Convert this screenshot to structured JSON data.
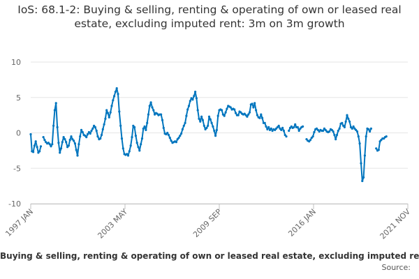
{
  "chart_data": {
    "type": "line",
    "title": "IoS: 68.1-2: Buying & selling, renting & operating of own or leased real estate, excluding imputed rent: 3m on 3m growth",
    "xlabel": "",
    "ylabel": "",
    "ylim": [
      -10,
      10
    ],
    "yticks": [
      10,
      5,
      0,
      -5,
      -10
    ],
    "x_start": "1997 JAN",
    "x_end": "2021 NOV",
    "x_ticks": [
      "1997 JAN",
      "2003 MAY",
      "2009 SEP",
      "2016 JAN",
      "2021 NOV"
    ],
    "series_color": "#0075be",
    "series": [
      {
        "name": "Buying & selling, renting & operating of own or leased real estate, excluding imputed rent",
        "segments": [
          [
            -0.2,
            -2.6,
            -2.7,
            -1.8,
            -1.2,
            -2.0,
            -2.8,
            -2.6,
            -1.9
          ],
          [
            -0.6,
            -1.0,
            -1.3,
            -1.5,
            -1.4,
            -1.6,
            -1.9,
            -1.6,
            1.0,
            3.2,
            4.2,
            0.8,
            -1.4,
            -2.8,
            -2.2,
            -1.3,
            -0.6,
            -0.9,
            -1.3,
            -2.0,
            -1.8,
            -1.0,
            -0.5,
            -0.9,
            -1.1,
            -1.5,
            -2.4,
            -3.2,
            -1.6,
            -0.5,
            0.4,
            0.1,
            -0.3,
            -0.4,
            -0.6,
            -0.2,
            0.1,
            -0.1,
            0.3,
            0.6,
            1.0,
            0.8,
            0.3,
            -0.5,
            -0.9,
            -0.8,
            -0.3,
            0.5,
            1.2,
            2.0,
            3.2,
            2.8,
            2.2,
            2.9,
            3.8,
            4.6,
            5.2,
            5.8,
            6.3,
            5.5,
            3.0,
            1.0,
            -0.8,
            -2.2,
            -3.0,
            -3.1,
            -3.0,
            -3.2,
            -2.6,
            -1.8,
            -0.6,
            1.0,
            0.8,
            -0.4,
            -1.4,
            -2.0,
            -2.5,
            -1.6,
            -0.8,
            0.6,
            0.9,
            0.4,
            1.4,
            2.6,
            3.8,
            4.3,
            3.6,
            3.2,
            2.6,
            2.8,
            2.7,
            2.5,
            2.6,
            2.6,
            1.8,
            0.7,
            -0.1,
            -0.2,
            0.0,
            -0.3,
            -0.7,
            -1.1,
            -1.4,
            -1.3,
            -1.2,
            -1.3,
            -0.9,
            -0.7,
            -0.4,
            -0.1,
            0.5,
            1.0,
            1.4,
            2.4,
            3.3,
            3.8,
            4.5,
            4.9,
            4.7,
            5.2,
            5.8,
            4.9,
            3.2,
            2.0,
            1.6,
            2.3,
            1.8,
            1.0,
            0.5,
            0.7,
            1.0,
            2.3,
            1.9,
            1.4,
            0.9,
            0.3,
            -0.4,
            0.4,
            2.4,
            3.2,
            3.3,
            3.2,
            2.6,
            2.4,
            2.9,
            3.4,
            3.8,
            3.7,
            3.6,
            3.3,
            3.4,
            3.3,
            2.8,
            2.5,
            2.5,
            3.0,
            2.9,
            2.7,
            2.6,
            2.7,
            2.5,
            2.3,
            2.6,
            2.9,
            4.0,
            4.1,
            3.6,
            4.2,
            3.2,
            2.5,
            2.2,
            2.1,
            2.6,
            2.1,
            1.4,
            1.4,
            0.9,
            0.5,
            0.8,
            0.4,
            0.6,
            0.3,
            0.5,
            0.4,
            0.6,
            0.8,
            1.0,
            0.6,
            0.4,
            0.7,
            0.3,
            -0.3,
            -0.5
          ],
          [
            0.3,
            0.7,
            0.9,
            0.7,
            0.8,
            1.2,
            0.8,
            0.8,
            0.3,
            0.6,
            0.8,
            0.9
          ],
          [
            -0.9,
            -1.1,
            -1.2,
            -1.0,
            -0.7,
            -0.5,
            0.1,
            0.5,
            0.6,
            0.4,
            0.2,
            0.4,
            0.3,
            0.3,
            0.6,
            0.4,
            0.2,
            0.1,
            0.2,
            0.5,
            0.4,
            0.2,
            -0.3,
            -0.9,
            -0.3,
            0.3,
            0.6,
            1.3,
            1.4,
            1.0,
            0.8,
            1.6,
            2.5,
            2.0,
            1.6,
            0.8,
            0.6,
            0.9,
            0.6,
            0.4,
            0.2,
            -0.5,
            -1.5,
            -4.3,
            -6.8,
            -6.3,
            -3.2,
            -0.5,
            0.6,
            0.5,
            0.2,
            0.6
          ],
          [
            -2.2,
            -2.5,
            -2.4,
            -1.2,
            -1.0,
            -0.8,
            -0.8,
            -0.6,
            -0.5
          ]
        ],
        "segment_start_index": [
          0,
          10,
          204,
          218,
          273
        ]
      }
    ],
    "n_points": 299
  },
  "legend": {
    "label": "Buying & selling, renting & operating of own or leased real estate, excluding imputed rent"
  },
  "source": {
    "label": "Source:"
  }
}
